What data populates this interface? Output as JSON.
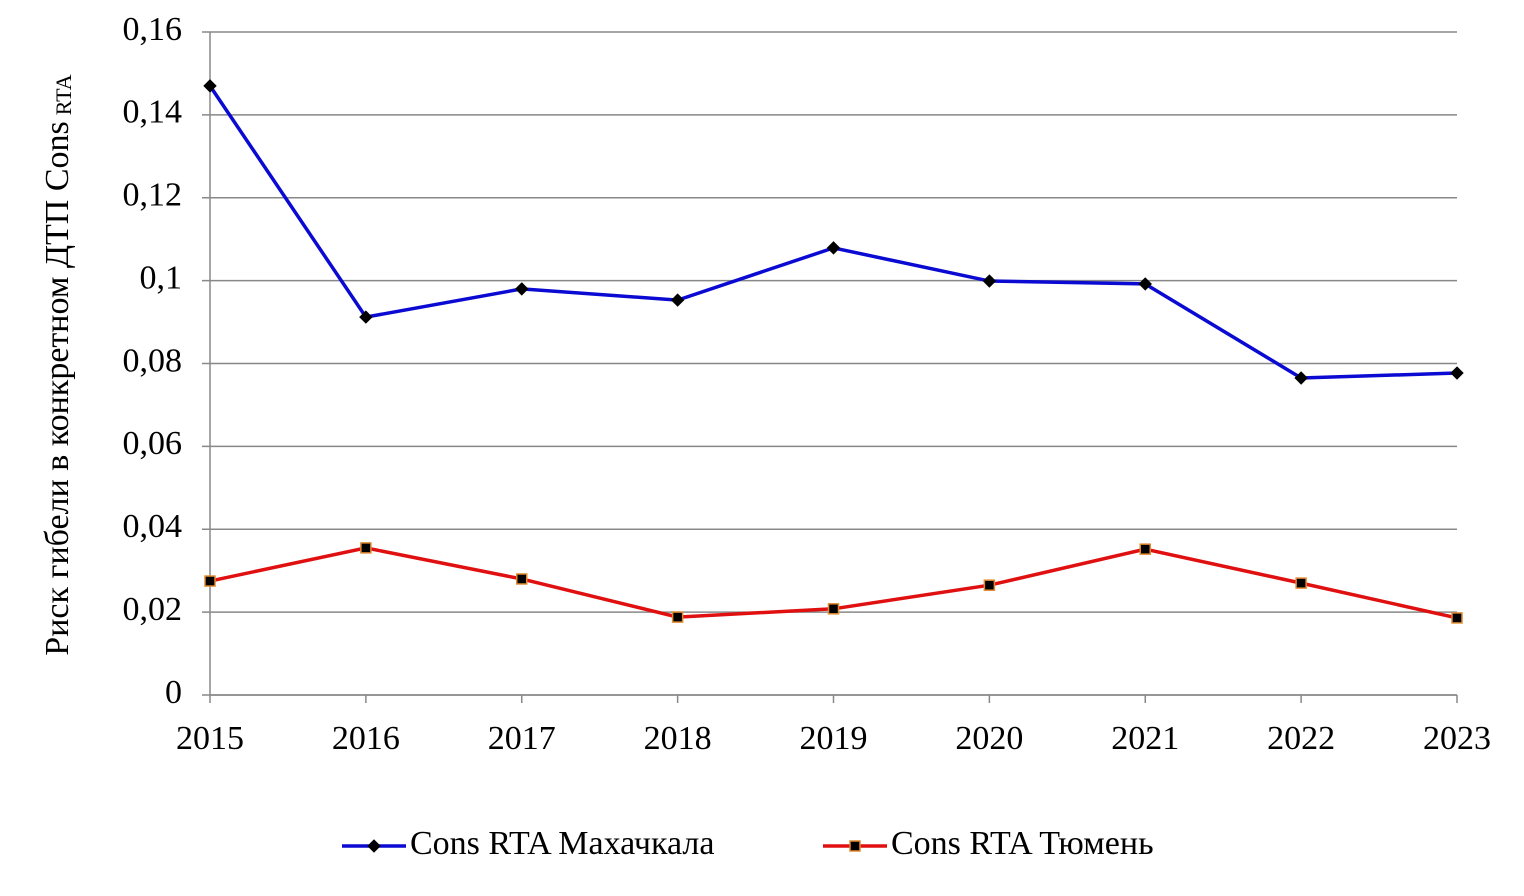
{
  "chart_data": {
    "type": "line",
    "ylabel": "Риск гибели в конкретном ДТП Cons",
    "ylabel_subscript": "RTA",
    "x": [
      2015,
      2016,
      2017,
      2018,
      2019,
      2020,
      2021,
      2022,
      2023
    ],
    "xlim": [
      2015,
      2023
    ],
    "xticks": [
      2015,
      2016,
      2017,
      2018,
      2019,
      2020,
      2021,
      2022,
      2023
    ],
    "ylim": [
      0,
      0.16
    ],
    "yticks": [
      0,
      {
        "value": 0.02,
        "label": "0,02"
      },
      {
        "value": 0.04,
        "label": "0,04"
      },
      {
        "value": 0.06,
        "label": "0,06"
      },
      {
        "value": 0.08,
        "label": "0,08"
      },
      {
        "value": 0.1,
        "label": "0,1"
      },
      {
        "value": 0.12,
        "label": "0,12"
      },
      {
        "value": 0.14,
        "label": "0,14"
      },
      {
        "value": 0.16,
        "label": "0,16"
      }
    ],
    "grid": true,
    "legend": "bottom",
    "series": [
      {
        "name": "Cons RTA Махачкала",
        "color": "#0a0ad2",
        "marker": "diamond",
        "values": [
          0.147,
          0.0912,
          0.098,
          0.0953,
          0.1079,
          0.0999,
          0.0992,
          0.0765,
          0.0777
        ]
      },
      {
        "name": "Cons RTA Тюмень",
        "color": "#e01010",
        "marker": "square",
        "values": [
          0.0275,
          0.0355,
          0.028,
          0.0188,
          0.0208,
          0.0265,
          0.0352,
          0.027,
          0.0186
        ]
      }
    ]
  }
}
